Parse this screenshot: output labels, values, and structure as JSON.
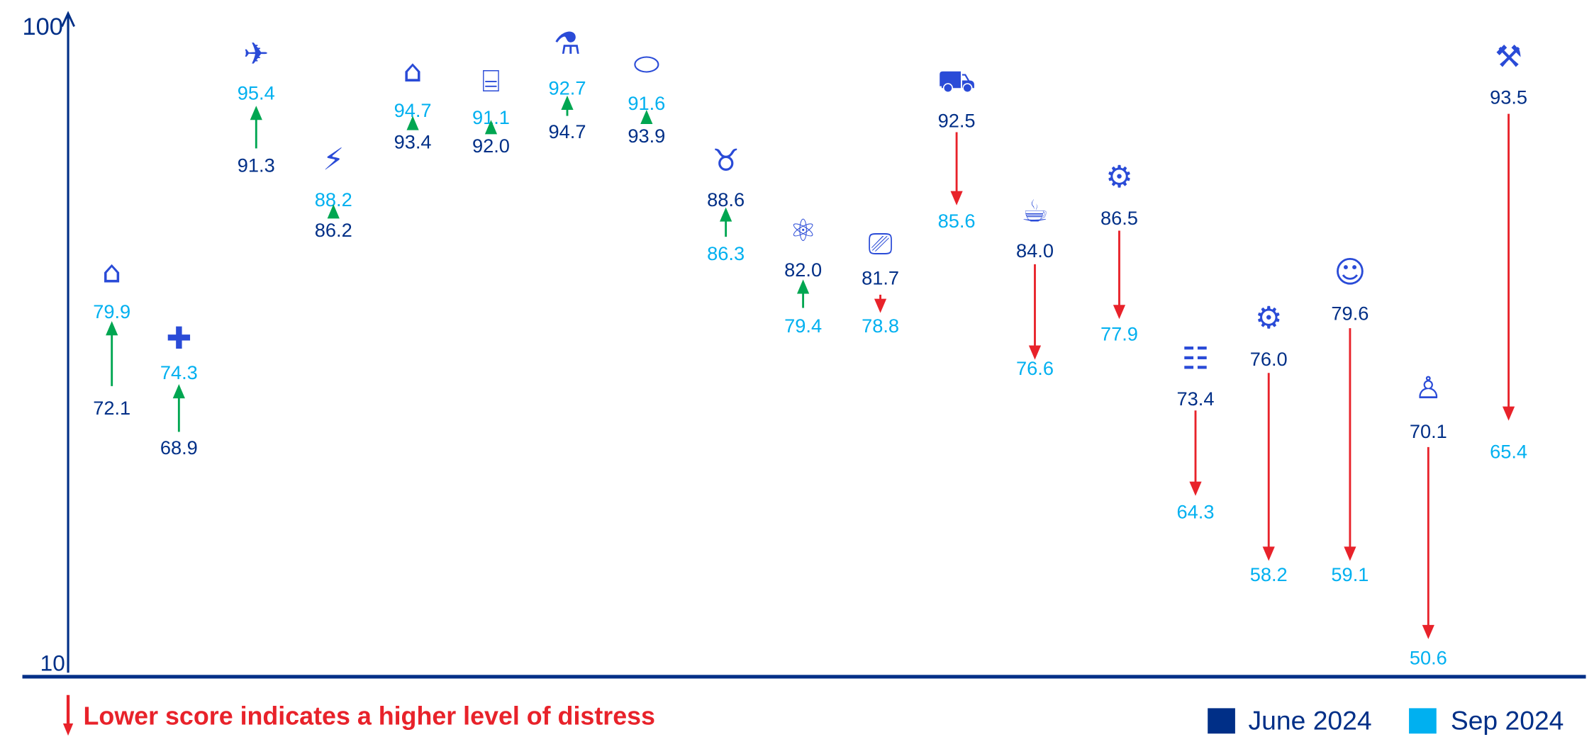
{
  "chart_data": {
    "type": "scatter",
    "title": "",
    "ylabel": "",
    "xlabel": "",
    "ylim": [
      10,
      100
    ],
    "y_ticks": [
      "100",
      "10"
    ],
    "grid": false,
    "legend_position": "bottom-right",
    "series": [
      {
        "name": "June 2024",
        "color": "#002f87"
      },
      {
        "name": "Sep 2024",
        "color": "#00b0f0"
      }
    ],
    "categories": [
      {
        "icon": "home-in-hand-icon",
        "june": 72.1,
        "sep": 79.9
      },
      {
        "icon": "healthcare-hand-icon",
        "june": 68.9,
        "sep": 74.3
      },
      {
        "icon": "airplane-icon",
        "june": 91.3,
        "sep": 95.4
      },
      {
        "icon": "energy-bolt-icon",
        "june": 86.2,
        "sep": 88.2
      },
      {
        "icon": "house-icon",
        "june": 93.4,
        "sep": 94.7
      },
      {
        "icon": "bank-icon",
        "june": 92.0,
        "sep": 91.1
      },
      {
        "icon": "flask-icon",
        "june": 94.7,
        "sep": 92.7
      },
      {
        "icon": "pills-icon",
        "june": 93.9,
        "sep": 91.6
      },
      {
        "icon": "bull-icon",
        "june": 88.6,
        "sep": 86.3
      },
      {
        "icon": "atom-icon",
        "june": 82.0,
        "sep": 79.4
      },
      {
        "icon": "video-camera-icon",
        "june": 81.7,
        "sep": 78.8
      },
      {
        "icon": "truck-icon",
        "june": 92.5,
        "sep": 85.6
      },
      {
        "icon": "fast-food-icon",
        "june": 84.0,
        "sep": 76.6
      },
      {
        "icon": "hand-gear-icon",
        "june": 86.5,
        "sep": 77.9
      },
      {
        "icon": "people-group-icon",
        "june": 73.4,
        "sep": 64.3
      },
      {
        "icon": "gear-wrench-icon",
        "june": 76.0,
        "sep": 58.2
      },
      {
        "icon": "ai-head-icon",
        "june": 79.6,
        "sep": 59.1
      },
      {
        "icon": "person-icon",
        "june": 70.1,
        "sep": 50.6
      },
      {
        "icon": "tools-icon",
        "june": 93.5,
        "sep": 65.4
      }
    ],
    "arrow_colors": {
      "up": "#00a651",
      "down": "#e8222a"
    },
    "annotation": "Lower score indicates a higher level of distress"
  }
}
